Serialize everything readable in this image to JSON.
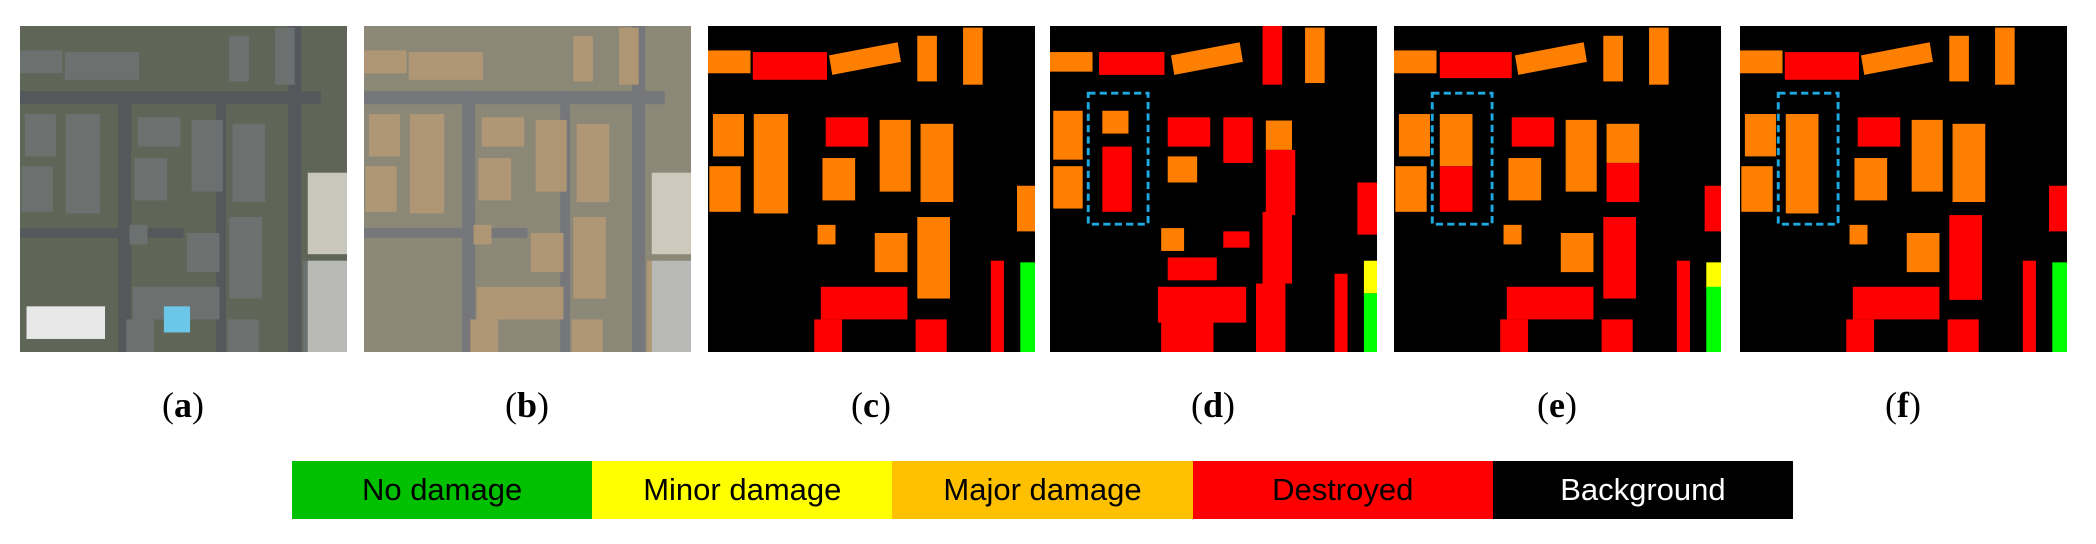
{
  "panels": [
    {
      "id": "a",
      "kind": "pre-disaster-image",
      "caption_letter": "a"
    },
    {
      "id": "b",
      "kind": "post-disaster-image",
      "caption_letter": "b"
    },
    {
      "id": "c",
      "kind": "damage-map",
      "caption_letter": "c"
    },
    {
      "id": "d",
      "kind": "damage-map",
      "caption_letter": "d",
      "highlight_box": true
    },
    {
      "id": "e",
      "kind": "damage-map",
      "caption_letter": "e",
      "highlight_box": true
    },
    {
      "id": "f",
      "kind": "damage-map",
      "caption_letter": "f",
      "highlight_box": true
    }
  ],
  "caption_open": "(",
  "caption_close": ")",
  "highlight_color": "#1ea8e0",
  "legend": [
    {
      "label": "No damage",
      "color": "#00c000",
      "text_color": "#000000"
    },
    {
      "label": "Minor damage",
      "color": "#ffff00",
      "text_color": "#000000"
    },
    {
      "label": "Major damage",
      "color": "#ffc000",
      "text_color": "#000000"
    },
    {
      "label": "Destroyed",
      "color": "#ff0000",
      "text_color": "#000000"
    },
    {
      "label": "Background",
      "color": "#000000",
      "text_color": "#ffffff"
    }
  ],
  "map_colors": {
    "none": "#00ff00",
    "minor": "#ffff00",
    "major": "#ff8000",
    "destroyed": "#ff0000",
    "background": "#000000"
  }
}
